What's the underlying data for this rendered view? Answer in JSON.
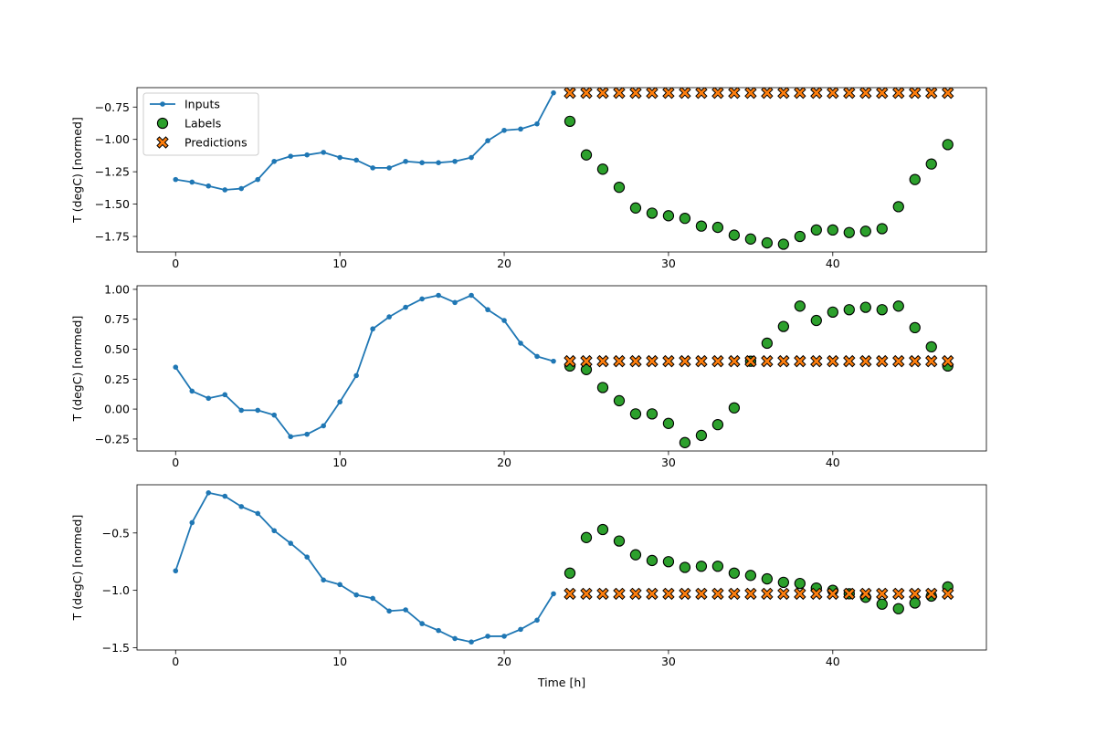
{
  "chart_data": [
    {
      "type": "line",
      "ylabel": "T (degC) [normed]",
      "xlabel": "",
      "xlim": [
        -2.35,
        49.35
      ],
      "ylim": [
        -1.87,
        -0.6
      ],
      "xticks": [
        0,
        10,
        20,
        30,
        40
      ],
      "yticks": [
        -0.75,
        -1.0,
        -1.25,
        -1.5,
        -1.75
      ],
      "ytick_labels": [
        "−0.75",
        "−1.00",
        "−1.25",
        "−1.50",
        "−1.75"
      ],
      "legend": {
        "placement": "top-left",
        "entries": [
          "Inputs",
          "Labels",
          "Predictions"
        ]
      },
      "series": [
        {
          "name": "Inputs",
          "kind": "line-markers",
          "x": [
            0,
            1,
            2,
            3,
            4,
            5,
            6,
            7,
            8,
            9,
            10,
            11,
            12,
            13,
            14,
            15,
            16,
            17,
            18,
            19,
            20,
            21,
            22,
            23
          ],
          "y": [
            -1.31,
            -1.33,
            -1.36,
            -1.39,
            -1.38,
            -1.31,
            -1.17,
            -1.13,
            -1.12,
            -1.1,
            -1.14,
            -1.16,
            -1.22,
            -1.22,
            -1.17,
            -1.18,
            -1.18,
            -1.17,
            -1.14,
            -1.01,
            -0.93,
            -0.92,
            -0.88,
            -0.64
          ]
        },
        {
          "name": "Labels",
          "kind": "scatter-circle",
          "x": [
            24,
            25,
            26,
            27,
            28,
            29,
            30,
            31,
            32,
            33,
            34,
            35,
            36,
            37,
            38,
            39,
            40,
            41,
            42,
            43,
            44,
            45,
            46,
            47
          ],
          "y": [
            -0.86,
            -1.12,
            -1.23,
            -1.37,
            -1.53,
            -1.57,
            -1.59,
            -1.61,
            -1.67,
            -1.68,
            -1.74,
            -1.77,
            -1.8,
            -1.81,
            -1.75,
            -1.7,
            -1.7,
            -1.72,
            -1.71,
            -1.69,
            -1.52,
            -1.31,
            -1.19,
            -1.04
          ]
        },
        {
          "name": "Predictions",
          "kind": "scatter-x",
          "x": [
            24,
            25,
            26,
            27,
            28,
            29,
            30,
            31,
            32,
            33,
            34,
            35,
            36,
            37,
            38,
            39,
            40,
            41,
            42,
            43,
            44,
            45,
            46,
            47
          ],
          "y": [
            -0.64,
            -0.64,
            -0.64,
            -0.64,
            -0.64,
            -0.64,
            -0.64,
            -0.64,
            -0.64,
            -0.64,
            -0.64,
            -0.64,
            -0.64,
            -0.64,
            -0.64,
            -0.64,
            -0.64,
            -0.64,
            -0.64,
            -0.64,
            -0.64,
            -0.64,
            -0.64,
            -0.64
          ]
        }
      ]
    },
    {
      "type": "line",
      "ylabel": "T (degC) [normed]",
      "xlabel": "",
      "xlim": [
        -2.35,
        49.35
      ],
      "ylim": [
        -0.35,
        1.03
      ],
      "xticks": [
        0,
        10,
        20,
        30,
        40
      ],
      "yticks": [
        1.0,
        0.75,
        0.5,
        0.25,
        0.0,
        -0.25
      ],
      "ytick_labels": [
        "1.00",
        "0.75",
        "0.50",
        "0.25",
        "0.00",
        "−0.25"
      ],
      "series": [
        {
          "name": "Inputs",
          "kind": "line-markers",
          "x": [
            0,
            1,
            2,
            3,
            4,
            5,
            6,
            7,
            8,
            9,
            10,
            11,
            12,
            13,
            14,
            15,
            16,
            17,
            18,
            19,
            20,
            21,
            22,
            23
          ],
          "y": [
            0.35,
            0.15,
            0.09,
            0.12,
            -0.01,
            -0.01,
            -0.05,
            -0.23,
            -0.21,
            -0.14,
            0.06,
            0.28,
            0.67,
            0.77,
            0.85,
            0.92,
            0.95,
            0.89,
            0.95,
            0.83,
            0.74,
            0.55,
            0.44,
            0.4
          ]
        },
        {
          "name": "Labels",
          "kind": "scatter-circle",
          "x": [
            24,
            25,
            26,
            27,
            28,
            29,
            30,
            31,
            32,
            33,
            34,
            35,
            36,
            37,
            38,
            39,
            40,
            41,
            42,
            43,
            44,
            45,
            46,
            47
          ],
          "y": [
            0.36,
            0.33,
            0.18,
            0.07,
            -0.04,
            -0.04,
            -0.12,
            -0.28,
            -0.22,
            -0.13,
            0.01,
            0.4,
            0.55,
            0.69,
            0.86,
            0.74,
            0.81,
            0.83,
            0.85,
            0.83,
            0.86,
            0.68,
            0.52,
            0.36
          ]
        },
        {
          "name": "Predictions",
          "kind": "scatter-x",
          "x": [
            24,
            25,
            26,
            27,
            28,
            29,
            30,
            31,
            32,
            33,
            34,
            35,
            36,
            37,
            38,
            39,
            40,
            41,
            42,
            43,
            44,
            45,
            46,
            47
          ],
          "y": [
            0.4,
            0.4,
            0.4,
            0.4,
            0.4,
            0.4,
            0.4,
            0.4,
            0.4,
            0.4,
            0.4,
            0.4,
            0.4,
            0.4,
            0.4,
            0.4,
            0.4,
            0.4,
            0.4,
            0.4,
            0.4,
            0.4,
            0.4,
            0.4
          ]
        }
      ]
    },
    {
      "type": "line",
      "ylabel": "T (degC) [normed]",
      "xlabel": "Time [h]",
      "xlim": [
        -2.35,
        49.35
      ],
      "ylim": [
        -1.52,
        -0.08
      ],
      "xticks": [
        0,
        10,
        20,
        30,
        40
      ],
      "yticks": [
        -0.5,
        -1.0,
        -1.5
      ],
      "ytick_labels": [
        "−0.5",
        "−1.0",
        "−1.5"
      ],
      "series": [
        {
          "name": "Inputs",
          "kind": "line-markers",
          "x": [
            0,
            1,
            2,
            3,
            4,
            5,
            6,
            7,
            8,
            9,
            10,
            11,
            12,
            13,
            14,
            15,
            16,
            17,
            18,
            19,
            20,
            21,
            22,
            23
          ],
          "y": [
            -0.83,
            -0.41,
            -0.15,
            -0.18,
            -0.27,
            -0.33,
            -0.48,
            -0.59,
            -0.71,
            -0.91,
            -0.95,
            -1.04,
            -1.07,
            -1.18,
            -1.17,
            -1.29,
            -1.35,
            -1.42,
            -1.45,
            -1.4,
            -1.4,
            -1.34,
            -1.26,
            -1.03
          ]
        },
        {
          "name": "Labels",
          "kind": "scatter-circle",
          "x": [
            24,
            25,
            26,
            27,
            28,
            29,
            30,
            31,
            32,
            33,
            34,
            35,
            36,
            37,
            38,
            39,
            40,
            41,
            42,
            43,
            44,
            45,
            46,
            47
          ],
          "y": [
            -0.85,
            -0.54,
            -0.47,
            -0.57,
            -0.69,
            -0.74,
            -0.75,
            -0.8,
            -0.79,
            -0.79,
            -0.85,
            -0.87,
            -0.9,
            -0.93,
            -0.94,
            -0.98,
            -1.0,
            -1.03,
            -1.06,
            -1.12,
            -1.16,
            -1.11,
            -1.05,
            -0.97
          ]
        },
        {
          "name": "Predictions",
          "kind": "scatter-x",
          "x": [
            24,
            25,
            26,
            27,
            28,
            29,
            30,
            31,
            32,
            33,
            34,
            35,
            36,
            37,
            38,
            39,
            40,
            41,
            42,
            43,
            44,
            45,
            46,
            47
          ],
          "y": [
            -1.03,
            -1.03,
            -1.03,
            -1.03,
            -1.03,
            -1.03,
            -1.03,
            -1.03,
            -1.03,
            -1.03,
            -1.03,
            -1.03,
            -1.03,
            -1.03,
            -1.03,
            -1.03,
            -1.03,
            -1.03,
            -1.03,
            -1.03,
            -1.03,
            -1.03,
            -1.03,
            -1.03
          ]
        }
      ]
    }
  ],
  "colors": {
    "inputs": "#1f77b4",
    "labels": "#2ca02c",
    "predictions": "#ff7f0e",
    "edge": "#000000"
  }
}
